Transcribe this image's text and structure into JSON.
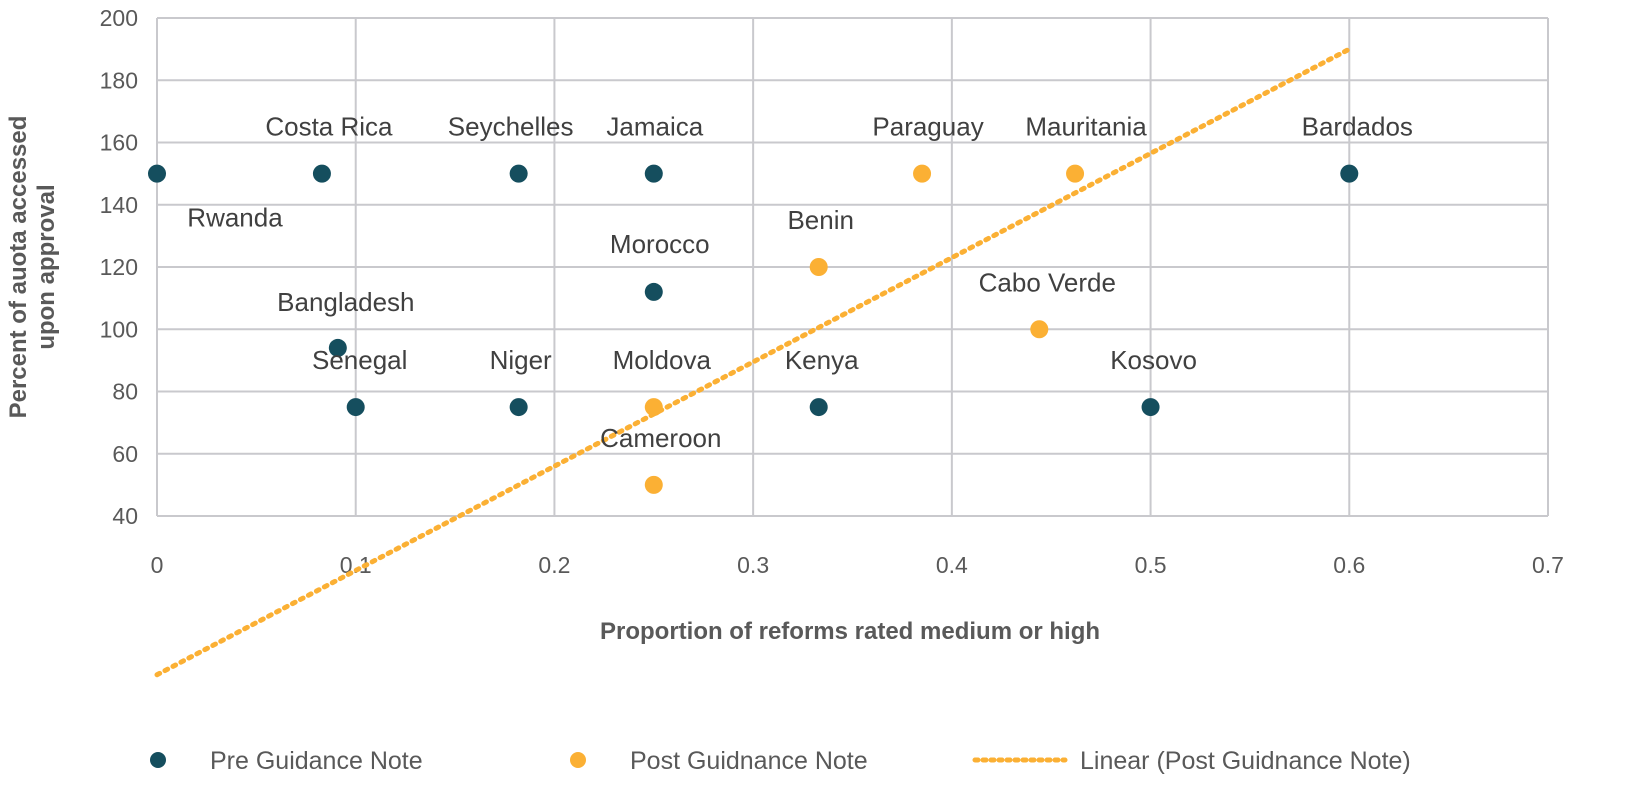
{
  "chart_data": {
    "type": "scatter",
    "title": "",
    "xlabel": "Proportion of reforms rated medium or high",
    "ylabel": [
      "Percent of auota accessed",
      "upon approval"
    ],
    "xlim": [
      0,
      0.7
    ],
    "ylim": [
      40,
      200
    ],
    "xticks": [
      "0",
      "0.1",
      "0.2",
      "0.3",
      "0.4",
      "0.5",
      "0.6",
      "0.7"
    ],
    "yticks": [
      "40",
      "60",
      "80",
      "100",
      "120",
      "140",
      "160",
      "180",
      "200"
    ],
    "grid": true,
    "legend_position": "bottom",
    "colors": {
      "pre": "#154e5e",
      "post": "#fbb034",
      "grid": "#c9c9cd"
    },
    "series": [
      {
        "name": "Pre Guidance Note",
        "points": [
          {
            "label": "Rwanda",
            "x": 0,
            "y": 150
          },
          {
            "label": "Costa Rica",
            "x": 0.083,
            "y": 150
          },
          {
            "label": "Seychelles",
            "x": 0.182,
            "y": 150
          },
          {
            "label": "Jamaica",
            "x": 0.25,
            "y": 150
          },
          {
            "label": "Morocco",
            "x": 0.25,
            "y": 112
          },
          {
            "label": "Bangladesh",
            "x": 0.091,
            "y": 94
          },
          {
            "label": "Senegal",
            "x": 0.1,
            "y": 75
          },
          {
            "label": "Niger",
            "x": 0.182,
            "y": 75
          },
          {
            "label": "Kenya",
            "x": 0.333,
            "y": 75
          },
          {
            "label": "Kosovo",
            "x": 0.5,
            "y": 75
          },
          {
            "label": "Bardados",
            "x": 0.6,
            "y": 150
          }
        ]
      },
      {
        "name": "Post Guidnance Note",
        "points": [
          {
            "label": "Paraguay",
            "x": 0.385,
            "y": 150
          },
          {
            "label": "Mauritania",
            "x": 0.462,
            "y": 150
          },
          {
            "label": "Benin",
            "x": 0.333,
            "y": 120
          },
          {
            "label": "Cabo Verde",
            "x": 0.444,
            "y": 100
          },
          {
            "label": "Moldova",
            "x": 0.25,
            "y": 75
          },
          {
            "label": "Cameroon",
            "x": 0.25,
            "y": 50
          }
        ]
      }
    ],
    "trendline": {
      "name": "Linear (Post Guidnance Note)",
      "type": "linear",
      "x": [
        0,
        0.6
      ],
      "y": [
        -11,
        190
      ]
    }
  }
}
